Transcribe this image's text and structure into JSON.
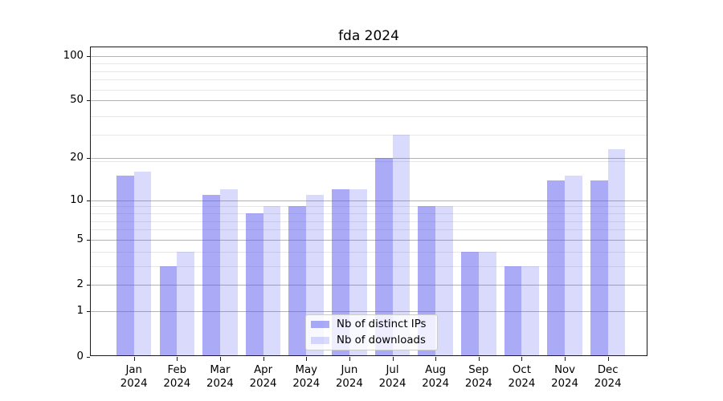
{
  "window": {
    "background": "#ffffff"
  },
  "chart_data": {
    "type": "bar",
    "title": "fda 2024",
    "categories": [
      "Jan 2024",
      "Feb 2024",
      "Mar 2024",
      "Apr 2024",
      "May 2024",
      "Jun 2024",
      "Jul 2024",
      "Aug 2024",
      "Sep 2024",
      "Oct 2024",
      "Nov 2024",
      "Dec 2024"
    ],
    "x": {
      "months": [
        "Jan",
        "Feb",
        "Mar",
        "Apr",
        "May",
        "Jun",
        "Jul",
        "Aug",
        "Sep",
        "Oct",
        "Nov",
        "Dec"
      ],
      "year": "2024"
    },
    "series": [
      {
        "name": "Nb of distinct IPs",
        "color": "rgba(85,85,240,0.5)",
        "values": [
          15,
          3,
          11,
          8,
          9,
          12,
          20,
          9,
          4,
          3,
          14,
          14
        ]
      },
      {
        "name": "Nb of downloads",
        "color": "rgba(85,85,240,0.22)",
        "values": [
          16,
          4,
          12,
          9,
          11,
          12,
          29,
          9,
          4,
          3,
          15,
          23
        ]
      }
    ],
    "y_axis": {
      "scale": "log10(value+1)",
      "tick_values": [
        100,
        50,
        20,
        10,
        5,
        2,
        1,
        0
      ],
      "minor_gridline_values": [
        3,
        4,
        6,
        7,
        8,
        9,
        19,
        29,
        39,
        59,
        69,
        79,
        89
      ],
      "top_value": 115
    },
    "legend": {
      "position": "lower center"
    },
    "colors": {
      "bar_dark_effective": "#aaaaf7",
      "bar_light_effective": "#ddddfc",
      "grid_major": "#b3b3b3",
      "grid_minor": "#e7e7e7",
      "spine": "#1a1a1a",
      "text": "#000000"
    }
  }
}
